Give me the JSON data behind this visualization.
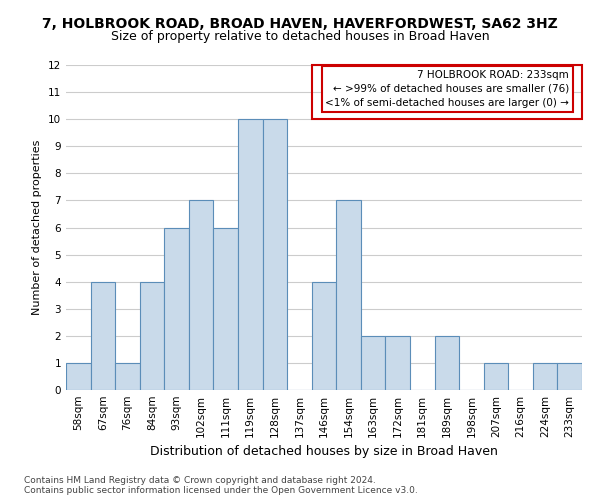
{
  "title_line1": "7, HOLBROOK ROAD, BROAD HAVEN, HAVERFORDWEST, SA62 3HZ",
  "title_line2": "Size of property relative to detached houses in Broad Haven",
  "xlabel": "Distribution of detached houses by size in Broad Haven",
  "ylabel": "Number of detached properties",
  "categories": [
    "58sqm",
    "67sqm",
    "76sqm",
    "84sqm",
    "93sqm",
    "102sqm",
    "111sqm",
    "119sqm",
    "128sqm",
    "137sqm",
    "146sqm",
    "154sqm",
    "163sqm",
    "172sqm",
    "181sqm",
    "189sqm",
    "198sqm",
    "207sqm",
    "216sqm",
    "224sqm",
    "233sqm"
  ],
  "values": [
    1,
    4,
    1,
    4,
    6,
    7,
    6,
    10,
    10,
    0,
    4,
    7,
    2,
    2,
    0,
    2,
    0,
    1,
    0,
    1,
    1
  ],
  "bar_color": "#c9daea",
  "bar_edge_color": "#5b8db8",
  "annotation_line1": "7 HOLBROOK ROAD: 233sqm",
  "annotation_line2": "← >99% of detached houses are smaller (76)",
  "annotation_line3": "<1% of semi-detached houses are larger (0) →",
  "annotation_box_facecolor": "#ffffff",
  "annotation_box_edgecolor": "#cc0000",
  "ylim": [
    0,
    12
  ],
  "yticks": [
    0,
    1,
    2,
    3,
    4,
    5,
    6,
    7,
    8,
    9,
    10,
    11,
    12
  ],
  "footer_line1": "Contains HM Land Registry data © Crown copyright and database right 2024.",
  "footer_line2": "Contains public sector information licensed under the Open Government Licence v3.0.",
  "bg_color": "#ffffff",
  "grid_color": "#cccccc",
  "title1_fontsize": 10,
  "title2_fontsize": 9,
  "xlabel_fontsize": 9,
  "ylabel_fontsize": 8,
  "tick_fontsize": 7.5,
  "footer_fontsize": 6.5,
  "annotation_fontsize": 7.5
}
